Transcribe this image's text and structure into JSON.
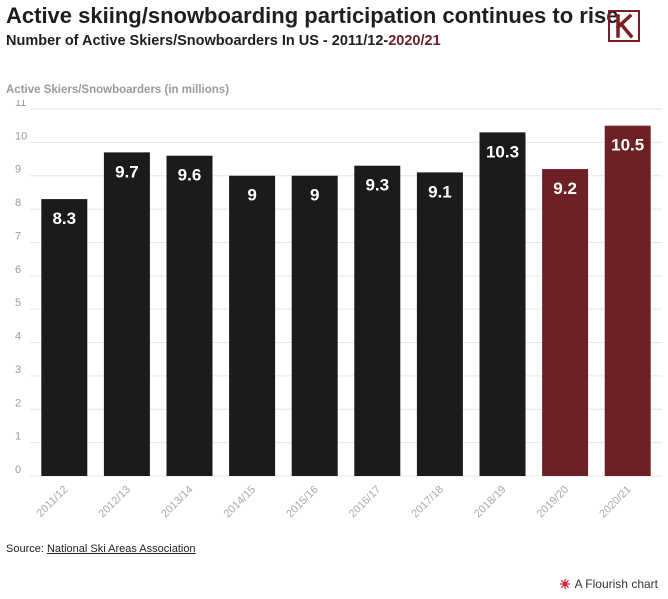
{
  "header": {
    "title": "Active skiing/snowboarding participation continues to rise",
    "subtitle_prefix": "Number of Active Skiers/Snowboarders In US - 2011/12-",
    "subtitle_highlight": "2020/21",
    "logo_letter": "K"
  },
  "colors": {
    "default_bar": "#1b1b1b",
    "highlight_bar": "#6e2026",
    "grid": "#e6e6e6",
    "tick_text": "#aaaaaa",
    "logo": "#7a1f25"
  },
  "chart_data": {
    "type": "bar",
    "title": "",
    "ylabel": "Active Skiers/Snowboarders (in millions)",
    "xlabel": "",
    "ylim": [
      0,
      11
    ],
    "yticks": [
      0,
      1,
      2,
      3,
      4,
      5,
      6,
      7,
      8,
      9,
      10,
      11
    ],
    "grid": true,
    "categories": [
      "2011/12",
      "2012/13",
      "2013/14",
      "2014/15",
      "2015/16",
      "2016/17",
      "2017/18",
      "2018/19",
      "2019/20",
      "2020/21"
    ],
    "values": [
      8.3,
      9.7,
      9.6,
      9,
      9,
      9.3,
      9.1,
      10.3,
      9.2,
      10.5
    ],
    "data_labels": [
      "8.3",
      "9.7",
      "9.6",
      "9",
      "9",
      "9.3",
      "9.1",
      "10.3",
      "9.2",
      "10.5"
    ],
    "highlighted_categories": [
      "2019/20",
      "2020/21"
    ]
  },
  "footer": {
    "source_label": "Source: ",
    "source_link": "National Ski Areas Association",
    "credit": "A Flourish chart"
  }
}
